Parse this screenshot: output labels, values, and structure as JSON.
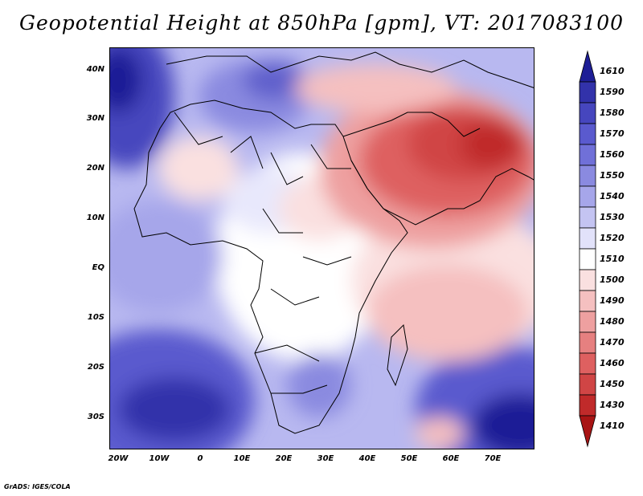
{
  "title": "Geopotential Height at 850hPa [gpm], VT: 2017083100",
  "footer": "GrADS: IGES/COLA",
  "lat_labels": [
    "40N",
    "30N",
    "20N",
    "10N",
    "EQ",
    "10S",
    "20S",
    "30S"
  ],
  "lon_labels": [
    "20W",
    "10W",
    "0",
    "10E",
    "20E",
    "30E",
    "40E",
    "50E",
    "60E",
    "70E"
  ],
  "colorbar": {
    "labels": [
      "1610",
      "1590",
      "1580",
      "1570",
      "1560",
      "1550",
      "1540",
      "1530",
      "1520",
      "1510",
      "1500",
      "1490",
      "1480",
      "1470",
      "1460",
      "1450",
      "1430",
      "1410"
    ],
    "colors": [
      "#1e1e96",
      "#3232aa",
      "#4646be",
      "#5a5ace",
      "#7070d8",
      "#8a8ae0",
      "#a6a6ea",
      "#c4c4f2",
      "#e2e2fa",
      "#ffffff",
      "#fae0e0",
      "#f5c0c0",
      "#eea0a0",
      "#e68080",
      "#de6060",
      "#d04545",
      "#c02a2a",
      "#a81414"
    ]
  },
  "chart_data": {
    "type": "heatmap",
    "title": "Geopotential Height at 850hPa [gpm], VT: 2017083100",
    "variable": "Geopotential Height at 850hPa",
    "units": "gpm",
    "valid_time": "2017083100",
    "lon_range": [
      -22,
      80
    ],
    "lat_range": [
      -37,
      45
    ],
    "levels": [
      1410,
      1430,
      1450,
      1460,
      1470,
      1480,
      1490,
      1500,
      1510,
      1520,
      1530,
      1540,
      1550,
      1560,
      1570,
      1580,
      1590,
      1610
    ],
    "highs": [
      "South Atlantic (1580-1610)",
      "South Indian Ocean (1580-1610)",
      "North Atlantic (1560-1580)",
      "Mediterranean (1540-1560)"
    ],
    "lows": [
      "Arabian Peninsula / Persian Gulf (1450-1470)",
      "Northwest India / Pakistan (1430-1450)",
      "Sahara (1490-1500)"
    ]
  }
}
